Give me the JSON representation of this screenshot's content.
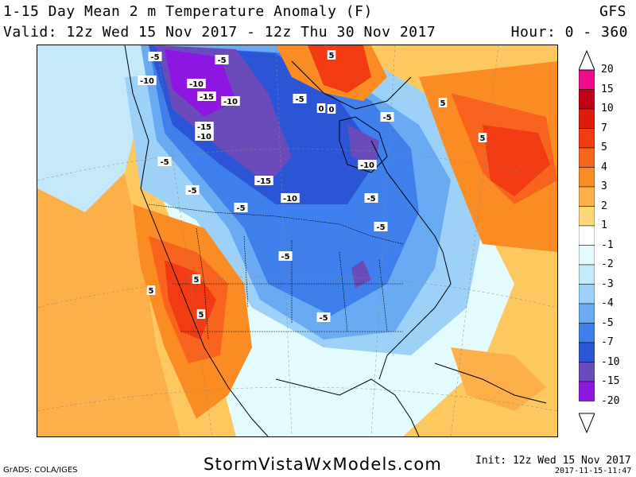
{
  "header": {
    "title": "1-15 Day Mean 2 m Temperature Anomaly (F)",
    "model": "GFS",
    "valid": "Valid: 12z Wed 15 Nov 2017 - 12z Thu 30 Nov 2017",
    "hour": "Hour: 0 - 360"
  },
  "colorbar": {
    "labels": [
      "20",
      "15",
      "10",
      "7",
      "5",
      "4",
      "3",
      "2",
      "1",
      "-1",
      "-2",
      "-3",
      "-4",
      "-5",
      "-7",
      "-10",
      "-15",
      "-20"
    ],
    "bins": [
      {
        "color": "#ee0c8c"
      },
      {
        "color": "#c40016"
      },
      {
        "color": "#dd1c0e"
      },
      {
        "color": "#f23a13"
      },
      {
        "color": "#f8641e"
      },
      {
        "color": "#fb8c24"
      },
      {
        "color": "#fdb04a"
      },
      {
        "color": "#fed776"
      },
      {
        "color": "#ffffff"
      },
      {
        "color": "#e4fbfe"
      },
      {
        "color": "#c3e9fb"
      },
      {
        "color": "#9ed1f7"
      },
      {
        "color": "#6aaaf3"
      },
      {
        "color": "#3f7fec"
      },
      {
        "color": "#2c55d6"
      },
      {
        "color": "#6b4bb9"
      },
      {
        "color": "#8d17e0"
      }
    ]
  },
  "map": {
    "contour_labels": [
      {
        "text": "-5"
      },
      {
        "text": "-10"
      },
      {
        "text": "-5"
      },
      {
        "text": "-10"
      },
      {
        "text": "-15"
      },
      {
        "text": "-10"
      },
      {
        "text": "-15"
      },
      {
        "text": "-10"
      },
      {
        "text": "-5"
      },
      {
        "text": "0"
      },
      {
        "text": "-5"
      },
      {
        "text": "5"
      },
      {
        "text": "5"
      },
      {
        "text": "5"
      },
      {
        "text": "-5"
      },
      {
        "text": "-10"
      },
      {
        "text": "-15"
      },
      {
        "text": "-10"
      },
      {
        "text": "-5"
      },
      {
        "text": "-5"
      },
      {
        "text": "-5"
      },
      {
        "text": "-5"
      },
      {
        "text": "-5"
      },
      {
        "text": "5"
      },
      {
        "text": "5"
      },
      {
        "text": "5"
      },
      {
        "text": "-5"
      },
      {
        "text": "0"
      }
    ]
  },
  "footer": {
    "credit": "GrADS: COLA/IGES",
    "site": "StormVistaWxModels.com",
    "init": "Init: 12z Wed 15 Nov 2017",
    "timestamp": "2017-11-15-11:47"
  }
}
